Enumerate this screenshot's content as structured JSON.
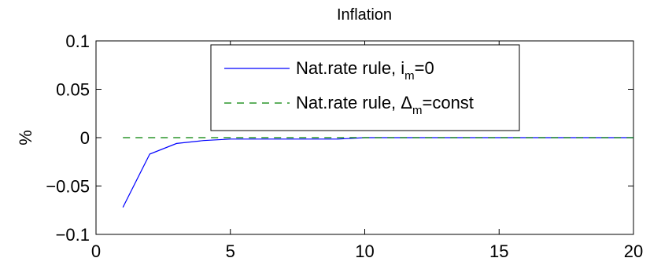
{
  "chart_data": {
    "type": "line",
    "title": "Inflation",
    "xlabel": "",
    "ylabel": "%",
    "xlim": [
      0,
      20
    ],
    "ylim": [
      -0.1,
      0.1
    ],
    "x_ticks": [
      0,
      5,
      10,
      15,
      20
    ],
    "x_tick_labels": [
      "0",
      "5",
      "10",
      "15",
      "20"
    ],
    "y_ticks": [
      0.1,
      0.05,
      0,
      -0.05,
      -0.1
    ],
    "y_tick_labels": [
      "0.1",
      "0.05",
      "0",
      "−0.05",
      "−0.1"
    ],
    "grid": false,
    "legend_position": "top-center",
    "series": [
      {
        "legend_text": "Nat.rate rule, i",
        "legend_subscript": "m",
        "legend_suffix": "=0",
        "color": "#0000ff",
        "line_style": "solid",
        "x": [
          1,
          2,
          3,
          4,
          5,
          6,
          7,
          8,
          9,
          10,
          11,
          12,
          13,
          14,
          15,
          16,
          17,
          18,
          19,
          20
        ],
        "values": [
          -0.072,
          -0.017,
          -0.006,
          -0.003,
          -0.0015,
          -0.0015,
          -0.0015,
          -0.0015,
          -0.0015,
          0,
          0,
          0,
          0,
          0,
          0,
          0,
          0,
          0,
          0,
          0
        ]
      },
      {
        "legend_text": "Nat.rate rule, Δ",
        "legend_subscript": "m",
        "legend_suffix": "=const",
        "color": "#008000",
        "line_style": "dashed",
        "x": [
          1,
          2,
          3,
          4,
          5,
          6,
          7,
          8,
          9,
          10,
          11,
          12,
          13,
          14,
          15,
          16,
          17,
          18,
          19,
          20
        ],
        "values": [
          0,
          0,
          0,
          0,
          0,
          0,
          0,
          0,
          0,
          0,
          0,
          0,
          0,
          0,
          0,
          0,
          0,
          0,
          0,
          0
        ]
      }
    ]
  }
}
